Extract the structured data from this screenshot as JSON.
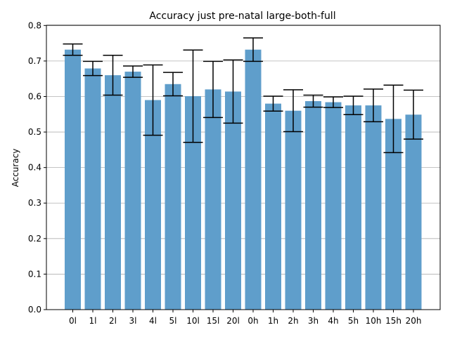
{
  "chart_data": {
    "type": "bar",
    "title": "Accuracy just pre-natal large-both-full",
    "xlabel": "",
    "ylabel": "Accuracy",
    "ylim": [
      0,
      0.8
    ],
    "yticks": [
      "0.0",
      "0.1",
      "0.2",
      "0.3",
      "0.4",
      "0.5",
      "0.6",
      "0.7",
      "0.8"
    ],
    "grid": "horizontal",
    "bar_color": "#5f9ecb",
    "error_bar_color": "#000000",
    "categories": [
      "0l",
      "1l",
      "2l",
      "3l",
      "4l",
      "5l",
      "10l",
      "15l",
      "20l",
      "0h",
      "1h",
      "2h",
      "3h",
      "4h",
      "5h",
      "10h",
      "15h",
      "20h"
    ],
    "values": [
      0.732,
      0.679,
      0.66,
      0.67,
      0.59,
      0.635,
      0.601,
      0.62,
      0.614,
      0.732,
      0.58,
      0.56,
      0.587,
      0.584,
      0.575,
      0.575,
      0.537,
      0.549
    ],
    "error_low": [
      0.716,
      0.659,
      0.604,
      0.654,
      0.491,
      0.602,
      0.471,
      0.541,
      0.525,
      0.699,
      0.559,
      0.501,
      0.57,
      0.569,
      0.549,
      0.529,
      0.442,
      0.48
    ],
    "error_high": [
      0.748,
      0.699,
      0.716,
      0.686,
      0.689,
      0.668,
      0.731,
      0.699,
      0.703,
      0.765,
      0.601,
      0.619,
      0.604,
      0.599,
      0.601,
      0.621,
      0.632,
      0.618
    ]
  }
}
